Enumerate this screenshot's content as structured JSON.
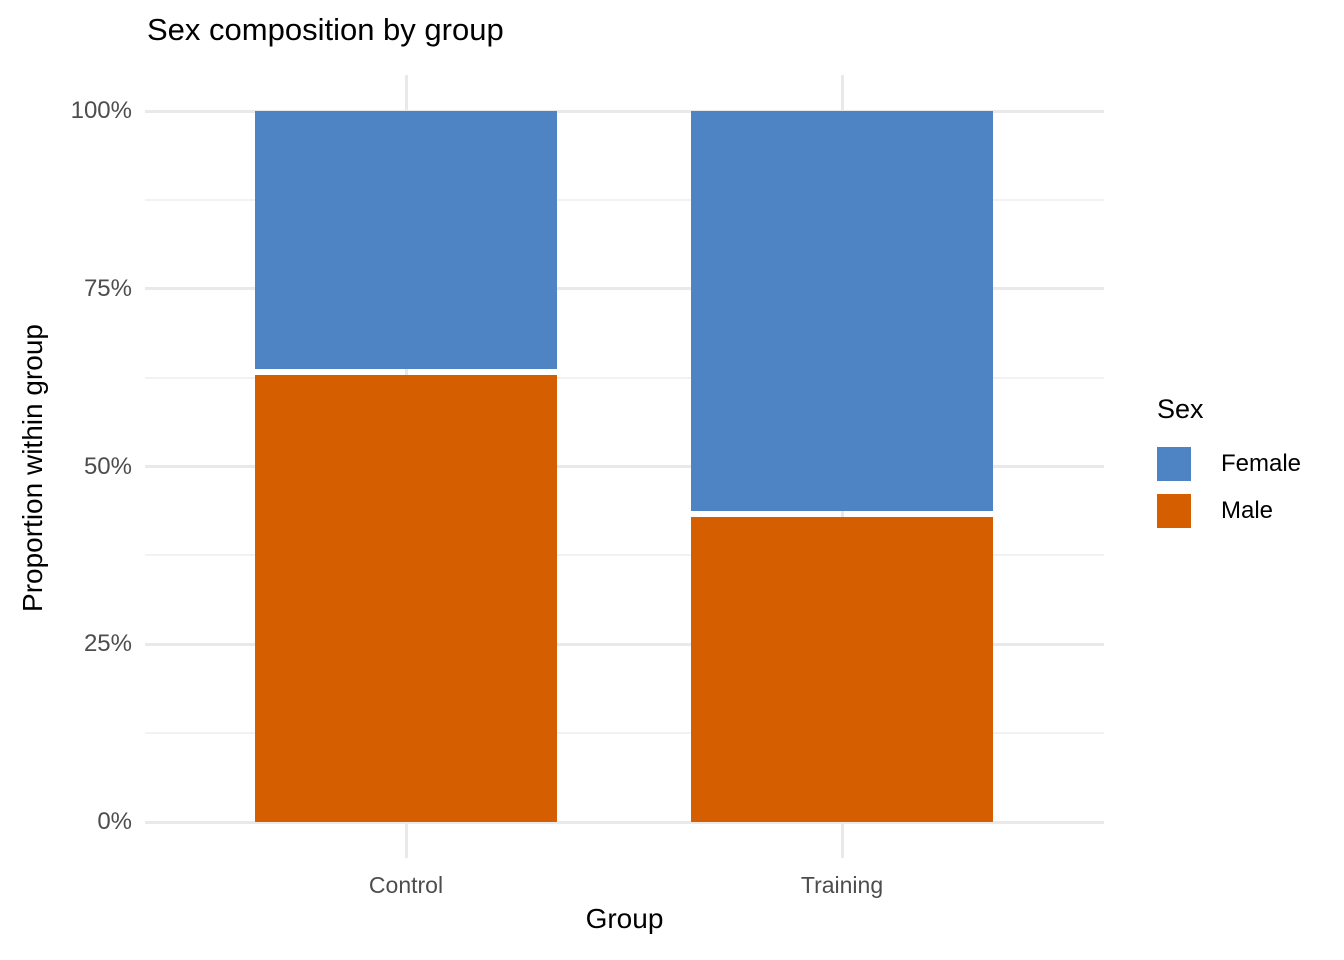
{
  "chart_data": {
    "type": "bar",
    "stacked": true,
    "units": "percent_within_group",
    "title": "Sex composition by group",
    "xlabel": "Group",
    "ylabel": "Proportion within group",
    "categories": [
      "Control",
      "Training"
    ],
    "series": [
      {
        "name": "Female",
        "color": "#4E84C4",
        "values": [
          36.7,
          56.7
        ]
      },
      {
        "name": "Male",
        "color": "#D55E00",
        "values": [
          63.3,
          43.3
        ]
      }
    ],
    "stack_order_bottom_to_top": [
      "Male",
      "Female"
    ],
    "y_ticks": [
      {
        "label": "0%",
        "value": 0
      },
      {
        "label": "25%",
        "value": 25
      },
      {
        "label": "50%",
        "value": 50
      },
      {
        "label": "75%",
        "value": 75
      },
      {
        "label": "100%",
        "value": 100
      }
    ],
    "y_minor_gridlines": [
      12.5,
      37.5,
      62.5,
      87.5
    ],
    "ylim": [
      0,
      100
    ],
    "legend": {
      "title": "Sex",
      "position": "right",
      "items": [
        {
          "label": "Female",
          "color": "#4E84C4"
        },
        {
          "label": "Male",
          "color": "#D55E00"
        }
      ]
    },
    "grid": {
      "horizontal_major": true,
      "horizontal_minor": true,
      "vertical_at_categories": true
    },
    "colors": {
      "background": "#FFFFFF",
      "grid_major": "#E9E9E9",
      "grid_minor": "#F2F2F2",
      "tick_label_text": "#4D4D4D",
      "title_text": "#000000",
      "segment_separator": "#FFFFFF"
    }
  }
}
